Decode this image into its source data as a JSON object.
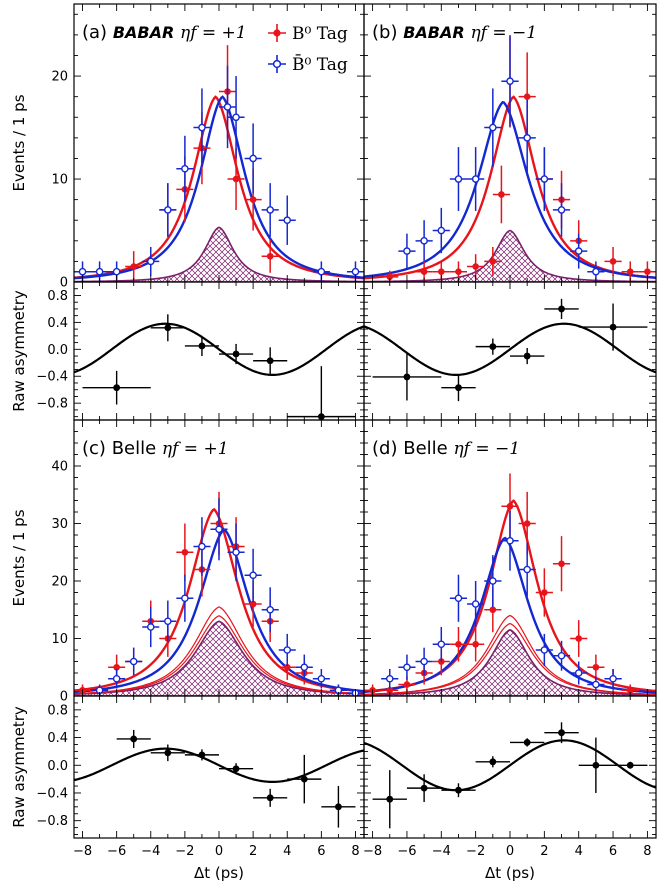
{
  "figure": {
    "ylabel_top": "Events / 1 ps",
    "ylabel_asym": "Raw asymmetry",
    "xlabel": "Δt (ps)"
  },
  "legend": {
    "b0": "B⁰ Tag",
    "b0bar": "B̄⁰ Tag"
  },
  "colors": {
    "b0": "#e8141c",
    "b0bar": "#1428d2",
    "background_fill": "#7a1f6a",
    "asymmetry": "#000000"
  },
  "chart_data": [
    {
      "panel": "a",
      "type": "scatter",
      "label_prefix": "(a)",
      "experiment": "BABAR",
      "eta": "ηf = +1",
      "xlim": [
        -8.5,
        8.5
      ],
      "ylim": [
        0,
        27
      ],
      "yticks": [
        0,
        10,
        20
      ],
      "ylabel": "Events / 1 ps",
      "curves": {
        "b0": {
          "amp": 18,
          "mu": -0.2,
          "w": 1.8
        },
        "b0bar": {
          "amp": 18,
          "mu": 0.2,
          "w": 1.8
        },
        "bkg": {
          "amp": 5.3,
          "mu": 0,
          "w": 1.1
        }
      },
      "series": [
        {
          "name": "B⁰ Tag",
          "x": [
            -5,
            -3,
            -2,
            -1,
            0.5,
            1,
            2,
            3
          ],
          "y": [
            1.5,
            7,
            9,
            13,
            18.5,
            10,
            8,
            2.5
          ],
          "yerr": [
            1.5,
            2.6,
            3.2,
            3.5,
            4.5,
            3,
            3,
            1.6
          ]
        },
        {
          "name": "B̄⁰ Tag",
          "x": [
            -8,
            -7,
            -6,
            -4,
            -3,
            -2,
            -1,
            0.5,
            1,
            2,
            3,
            4,
            6,
            8
          ],
          "y": [
            1,
            1,
            1,
            2,
            7,
            11,
            15,
            17,
            16,
            12,
            7,
            6,
            1,
            1
          ],
          "yerr": [
            1,
            1,
            1,
            1.4,
            2.6,
            3.2,
            3.8,
            4,
            4,
            3.4,
            2.6,
            2.4,
            1,
            1
          ]
        }
      ]
    },
    {
      "panel": "b",
      "type": "scatter",
      "label_prefix": "(b)",
      "experiment": "BABAR",
      "eta": "ηf = −1",
      "xlim": [
        -8.5,
        8.5
      ],
      "ylim": [
        0,
        27
      ],
      "yticks": [
        0,
        10,
        20
      ],
      "curves": {
        "b0": {
          "amp": 18,
          "mu": 0.2,
          "w": 1.8
        },
        "b0bar": {
          "amp": 17.5,
          "mu": -0.4,
          "w": 2.0
        },
        "bkg": {
          "amp": 5.0,
          "mu": 0,
          "w": 1.1
        }
      },
      "series": [
        {
          "name": "B⁰ Tag",
          "x": [
            -7,
            -5,
            -4,
            -3,
            -2,
            -1,
            -0.5,
            0,
            1,
            2,
            3,
            4,
            6,
            7,
            8
          ],
          "y": [
            0.5,
            1,
            1,
            1,
            1.5,
            2,
            8.5,
            19.5,
            18,
            10,
            8,
            4,
            2,
            1,
            1
          ],
          "yerr": [
            0.6,
            1,
            1,
            1,
            1.2,
            1.4,
            2.8,
            4.5,
            4.3,
            3,
            2.8,
            2,
            1.4,
            1,
            1
          ]
        },
        {
          "name": "B̄⁰ Tag",
          "x": [
            -6,
            -5,
            -4,
            -3,
            -2,
            -1,
            0,
            1,
            2,
            3,
            4,
            5
          ],
          "y": [
            3,
            4,
            5,
            10,
            10,
            15,
            19.5,
            14,
            10,
            7,
            3,
            1
          ],
          "yerr": [
            1.7,
            2,
            2.2,
            3.1,
            3.1,
            3.8,
            4.4,
            3.7,
            3.1,
            2.6,
            1.7,
            1
          ]
        }
      ]
    },
    {
      "panel": "a-asym",
      "type": "scatter",
      "xlim": [
        -8.5,
        8.5
      ],
      "ylim": [
        -1.05,
        1.0
      ],
      "yticks": [
        -0.8,
        -0.4,
        0.0,
        0.4,
        0.8
      ],
      "ylabel": "Raw asymmetry",
      "curve": {
        "amp": -0.38,
        "freq": 0.5,
        "phase": 0
      },
      "series": [
        {
          "name": "",
          "x": [
            -6,
            -3,
            -1,
            1,
            3,
            6
          ],
          "xerr": [
            2,
            1,
            1,
            1,
            1,
            2
          ],
          "y": [
            -0.57,
            0.32,
            0.05,
            -0.07,
            -0.17,
            -1.0
          ],
          "yerr": [
            0.25,
            0.2,
            0.15,
            0.15,
            0.2,
            0.75
          ]
        }
      ]
    },
    {
      "panel": "b-asym",
      "type": "scatter",
      "xlim": [
        -8.5,
        8.5
      ],
      "ylim": [
        -1.05,
        1.0
      ],
      "yticks": [
        -0.8,
        -0.4,
        0.0,
        0.4,
        0.8
      ],
      "curve": {
        "amp": 0.38,
        "freq": 0.5,
        "phase": 0
      },
      "series": [
        {
          "name": "",
          "x": [
            -6,
            -3,
            -1,
            1,
            3,
            6
          ],
          "xerr": [
            2,
            1,
            1,
            1,
            1,
            2
          ],
          "y": [
            -0.41,
            -0.57,
            0.04,
            -0.1,
            0.6,
            0.33
          ],
          "yerr": [
            0.35,
            0.2,
            0.12,
            0.12,
            0.15,
            0.35
          ]
        }
      ]
    },
    {
      "panel": "c",
      "type": "scatter",
      "label_prefix": "(c)",
      "experiment": "Belle",
      "eta": "ηf = +1",
      "xlim": [
        -8.5,
        8.5
      ],
      "ylim": [
        0,
        48
      ],
      "yticks": [
        0,
        10,
        20,
        30,
        40
      ],
      "ylabel": "Events / 1 ps",
      "curves": {
        "b0": {
          "amp": 32.5,
          "mu": -0.3,
          "w": 2.0
        },
        "b0bar": {
          "amp": 29,
          "mu": 0.3,
          "w": 2.0
        },
        "bkg": {
          "amp": 13,
          "mu": 0,
          "w": 1.9
        },
        "sig_b0": {
          "amp": 15.5,
          "mu": 0,
          "w": 2.0
        }
      },
      "series": [
        {
          "name": "B⁰ Tag",
          "x": [
            -8,
            -6,
            -5,
            -4,
            -3,
            -2,
            -1,
            0,
            1,
            2,
            3,
            4,
            5,
            7
          ],
          "y": [
            1,
            5,
            6,
            13,
            10,
            25,
            22,
            30,
            26,
            16,
            13,
            5,
            4,
            1
          ],
          "yerr": [
            1,
            2.2,
            2.4,
            3.6,
            3.2,
            5,
            4.7,
            5.5,
            5.1,
            4,
            3.6,
            2.2,
            2,
            1
          ]
        },
        {
          "name": "B̄⁰ Tag",
          "x": [
            -7,
            -6,
            -5,
            -4,
            -3,
            -2,
            -1,
            0,
            1,
            2,
            3,
            4,
            5,
            6,
            7,
            8
          ],
          "y": [
            1,
            3,
            6,
            12,
            13,
            17,
            26,
            29,
            25,
            21,
            15,
            8,
            5,
            3,
            1,
            0.5
          ],
          "yerr": [
            1,
            1.7,
            2.4,
            3.5,
            3.6,
            4.1,
            5.1,
            5.4,
            5,
            4.6,
            3.9,
            2.8,
            2.2,
            1.7,
            1,
            0.7
          ]
        }
      ]
    },
    {
      "panel": "d",
      "type": "scatter",
      "label_prefix": "(d)",
      "experiment": "Belle",
      "eta": "ηf = −1",
      "xlim": [
        -8.5,
        8.5
      ],
      "ylim": [
        0,
        48
      ],
      "yticks": [
        0,
        10,
        20,
        30,
        40
      ],
      "curves": {
        "b0": {
          "amp": 34,
          "mu": 0.2,
          "w": 1.9
        },
        "b0bar": {
          "amp": 27.5,
          "mu": -0.3,
          "w": 1.9
        },
        "bkg": {
          "amp": 11.5,
          "mu": 0,
          "w": 1.5
        },
        "sig_b0": {
          "amp": 14,
          "mu": 0,
          "w": 1.8
        }
      },
      "series": [
        {
          "name": "B⁰ Tag",
          "x": [
            -8,
            -7,
            -6,
            -5,
            -4,
            -3,
            -2,
            -1,
            0,
            1,
            2,
            3,
            4,
            5,
            6,
            7
          ],
          "y": [
            1,
            1,
            2,
            4,
            6,
            9,
            9,
            15,
            33,
            30,
            18,
            23,
            10,
            5,
            3,
            1
          ],
          "yerr": [
            1,
            1,
            1.4,
            2,
            2.4,
            3,
            3,
            3.9,
            5.7,
            5.5,
            4.2,
            4.8,
            3.2,
            2.2,
            1.7,
            1
          ]
        },
        {
          "name": "B̄⁰ Tag",
          "x": [
            -7,
            -6,
            -5,
            -4,
            -3,
            -2,
            -1,
            0,
            1,
            2,
            3,
            4,
            5,
            6
          ],
          "y": [
            3,
            5,
            6,
            9,
            17,
            16,
            20,
            27,
            22,
            8,
            7,
            4,
            2,
            3
          ],
          "yerr": [
            1.7,
            2.2,
            2.4,
            3,
            4.1,
            4,
            4.5,
            5.2,
            4.7,
            2.8,
            2.6,
            2,
            1.4,
            1.7
          ]
        }
      ]
    },
    {
      "panel": "c-asym",
      "type": "scatter",
      "xlim": [
        -8.5,
        8.5
      ],
      "ylim": [
        -1.05,
        1.0
      ],
      "yticks": [
        -0.8,
        -0.4,
        0.0,
        0.4,
        0.8
      ],
      "ylabel": "Raw asymmetry",
      "curve": {
        "amp": -0.24,
        "freq": 0.5,
        "phase": 0
      },
      "series": [
        {
          "name": "",
          "x": [
            -5,
            -3,
            -1,
            1,
            3,
            5,
            7
          ],
          "xerr": [
            1,
            1,
            1,
            1,
            1,
            1,
            1
          ],
          "y": [
            0.38,
            0.18,
            0.15,
            -0.05,
            -0.47,
            -0.2,
            -0.6
          ],
          "yerr": [
            0.13,
            0.12,
            0.08,
            0.08,
            0.13,
            0.35,
            0.3
          ]
        }
      ]
    },
    {
      "panel": "d-asym",
      "type": "scatter",
      "xlim": [
        -8.5,
        8.5
      ],
      "ylim": [
        -1.05,
        1.0
      ],
      "yticks": [
        -0.8,
        -0.4,
        0.0,
        0.4,
        0.8
      ],
      "curve": {
        "amp": 0.36,
        "freq": 0.5,
        "phase": 0
      },
      "series": [
        {
          "name": "",
          "x": [
            -7,
            -5,
            -3,
            -1,
            1,
            3,
            5,
            7
          ],
          "xerr": [
            1,
            1,
            1,
            1,
            1,
            1,
            1,
            1
          ],
          "y": [
            -0.49,
            -0.33,
            -0.36,
            0.05,
            0.33,
            0.47,
            0.0,
            0.0
          ],
          "yerr": [
            0.42,
            0.2,
            0.1,
            0.08,
            0.06,
            0.15,
            0.4,
            0.05
          ]
        }
      ]
    }
  ],
  "xticks": [
    -8,
    -6,
    -4,
    -2,
    0,
    2,
    4,
    6,
    8
  ]
}
